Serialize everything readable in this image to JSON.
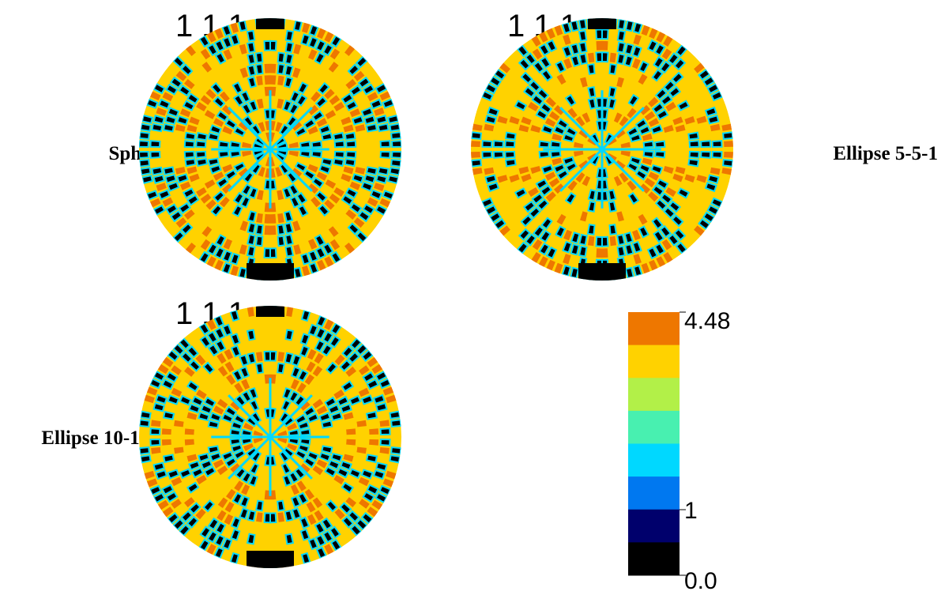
{
  "figures": [
    {
      "index_label": "1 1 1",
      "name": "Sphère"
    },
    {
      "index_label": "1 1 1",
      "name": "Ellipse 5-5-1"
    },
    {
      "index_label": "1 1 1",
      "name": "Ellipse 10-10-1"
    }
  ],
  "colorbar": {
    "colors": [
      "#ee7700",
      "#ffd200",
      "#b2f048",
      "#48f0b0",
      "#00d8ff",
      "#0078f0",
      "#00006c",
      "#000000"
    ],
    "tick_labels": [
      "4.48",
      "1",
      "0.0"
    ]
  }
}
